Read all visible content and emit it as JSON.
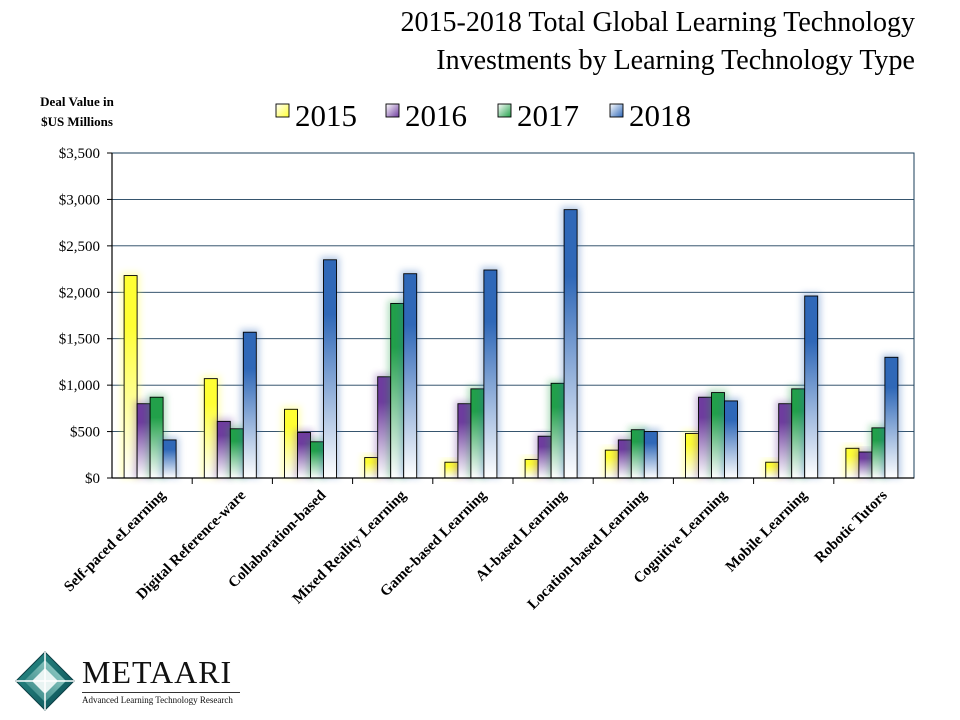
{
  "chart_data": {
    "type": "bar",
    "title": "2015-2018 Total Global Learning Technology Investments by Learning Technology Type",
    "title_lines": [
      "2015-2018 Total Global Learning Technology",
      "Investments by Learning Technology Type"
    ],
    "ylabel_lines": [
      "Deal Value in",
      "$US Millions"
    ],
    "xlabel": "",
    "ylim": [
      0,
      3500
    ],
    "ytick_values": [
      0,
      500,
      1000,
      1500,
      2000,
      2500,
      3000,
      3500
    ],
    "ytick_labels": [
      "$0",
      "$500",
      "$1,000",
      "$1,500",
      "$2,000",
      "$2,500",
      "$3,000",
      "$3,500"
    ],
    "grid": true,
    "legend_position": "top",
    "categories": [
      "Self-paced eLearning",
      "Digital Reference-ware",
      "Collaboration-based",
      "Mixed Reality Learning",
      "Game-based Learning",
      "AI-based Learning",
      "Location-based Learning",
      "Cognitive Learning",
      "Mobile Learning",
      "Robotic Tutors"
    ],
    "series": [
      {
        "name": "2015",
        "color": "#ffff33",
        "values": [
          2180,
          1070,
          740,
          220,
          170,
          200,
          300,
          480,
          170,
          320
        ]
      },
      {
        "name": "2016",
        "color": "#6f3c9f",
        "values": [
          800,
          610,
          490,
          1090,
          800,
          450,
          410,
          870,
          800,
          280
        ]
      },
      {
        "name": "2017",
        "color": "#22a04a",
        "values": [
          870,
          530,
          390,
          1880,
          960,
          1020,
          520,
          920,
          960,
          540
        ]
      },
      {
        "name": "2018",
        "color": "#2f68b8",
        "values": [
          410,
          1570,
          2350,
          2200,
          2240,
          2890,
          500,
          830,
          1960,
          1300
        ]
      }
    ]
  },
  "logo": {
    "brand": "METAARI",
    "tagline": "Advanced Learning Technology Research",
    "icon": "diamond-logo-icon"
  }
}
